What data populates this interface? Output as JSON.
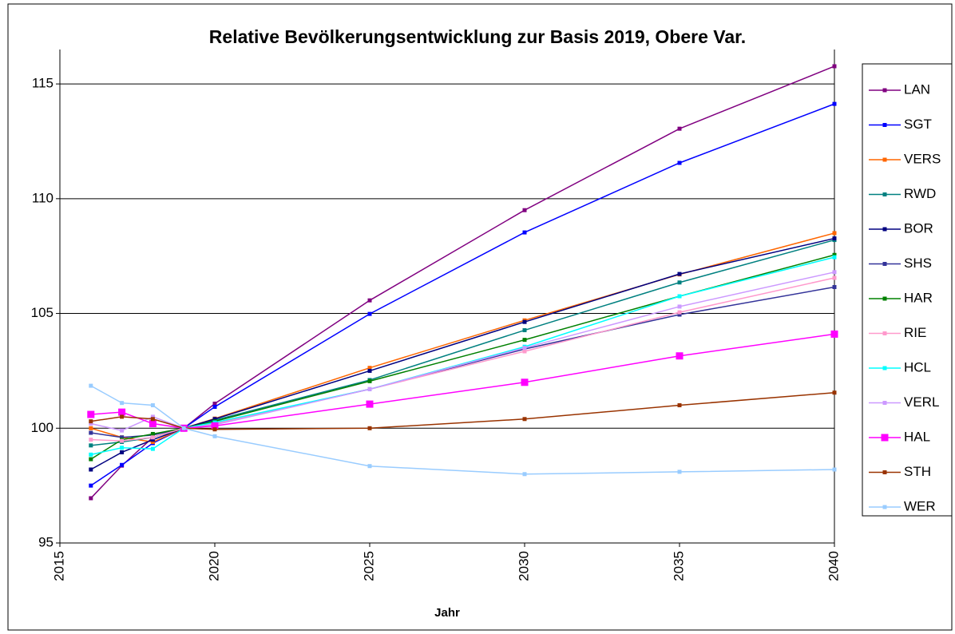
{
  "chart_data": {
    "type": "line",
    "title": "Relative Bevölkerungsentwicklung zur Basis 2019, Obere Var.",
    "x_label": "Jahr",
    "x": [
      2016,
      2017,
      2018,
      2019,
      2020,
      2025,
      2030,
      2035,
      2040
    ],
    "xlim": [
      2015,
      2040
    ],
    "xticks": [
      2015,
      2020,
      2025,
      2030,
      2035,
      2040
    ],
    "ylim": [
      95,
      116.5
    ],
    "yticks": [
      95,
      100,
      105,
      110,
      115
    ],
    "grid": true,
    "legend": "right",
    "series": [
      {
        "name": "LAN",
        "color": "#800080",
        "values": [
          96.95,
          98.37,
          99.6,
          100,
          101.07,
          105.57,
          109.5,
          113.05,
          115.77
        ]
      },
      {
        "name": "SGT",
        "color": "#0000ff",
        "values": [
          97.5,
          98.4,
          99.35,
          100,
          100.93,
          104.98,
          108.53,
          111.56,
          114.13
        ]
      },
      {
        "name": "VERS",
        "color": "#ff6600",
        "values": [
          100.0,
          99.6,
          99.4,
          100,
          100.42,
          102.63,
          104.7,
          106.7,
          108.5
        ]
      },
      {
        "name": "RWD",
        "color": "#008080",
        "values": [
          99.25,
          99.4,
          99.6,
          100,
          100.35,
          102.1,
          104.27,
          106.35,
          108.2
        ]
      },
      {
        "name": "BOR",
        "color": "#000080",
        "values": [
          98.2,
          98.95,
          99.5,
          100,
          100.4,
          102.5,
          104.63,
          106.72,
          108.27
        ]
      },
      {
        "name": "SHS",
        "color": "#333399",
        "values": [
          99.8,
          99.6,
          99.7,
          100,
          100.2,
          101.7,
          103.45,
          104.95,
          106.15
        ]
      },
      {
        "name": "HAR",
        "color": "#008000",
        "values": [
          98.65,
          99.5,
          99.75,
          100,
          100.3,
          102.05,
          103.85,
          105.75,
          107.55
        ]
      },
      {
        "name": "RIE",
        "color": "#ff99cc",
        "values": [
          99.5,
          99.45,
          99.6,
          100,
          100.2,
          101.7,
          103.35,
          105.05,
          106.55
        ]
      },
      {
        "name": "HCL",
        "color": "#00ffff",
        "values": [
          98.85,
          99.15,
          99.1,
          100,
          100.25,
          101.7,
          103.55,
          105.75,
          107.45
        ]
      },
      {
        "name": "VERL",
        "color": "#cc99ff",
        "values": [
          100.2,
          99.9,
          100.5,
          100,
          100.15,
          101.7,
          103.5,
          105.3,
          106.8
        ]
      },
      {
        "name": "HAL",
        "color": "#ff00ff",
        "values": [
          100.6,
          100.7,
          100.2,
          100,
          100.1,
          101.05,
          102.0,
          103.15,
          104.1
        ]
      },
      {
        "name": "STH",
        "color": "#993300",
        "values": [
          100.3,
          100.5,
          100.4,
          100,
          99.95,
          100.0,
          100.4,
          101.0,
          101.55
        ]
      },
      {
        "name": "WER",
        "color": "#99ccff",
        "values": [
          101.85,
          101.1,
          101.0,
          100,
          99.65,
          98.35,
          98.0,
          98.1,
          98.2
        ]
      }
    ]
  }
}
